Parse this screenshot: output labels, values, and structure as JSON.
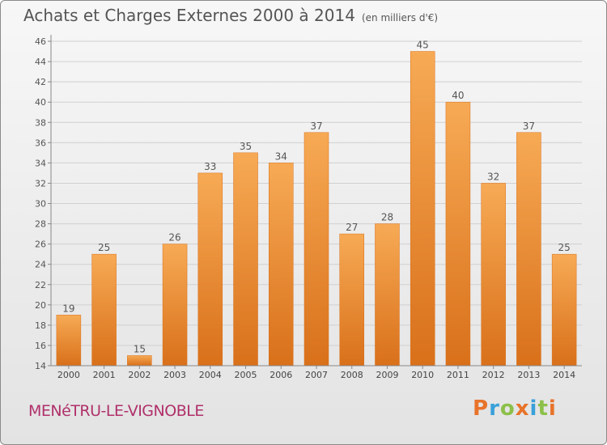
{
  "header": {
    "title": "Achats et Charges Externes 2000 à 2014",
    "unit": "(en milliers d'€)"
  },
  "footer": {
    "commune": "MENéTRU-LE-VIGNOBLE",
    "logo": "Proxiti",
    "logo_colors": [
      "#e8732a",
      "#3aa0d9",
      "#8cc04a",
      "#e8732a",
      "#3aa0d9",
      "#8cc04a",
      "#e8732a"
    ]
  },
  "chart_data": {
    "type": "bar",
    "categories": [
      "2000",
      "2001",
      "2002",
      "2003",
      "2004",
      "2005",
      "2006",
      "2007",
      "2008",
      "2009",
      "2010",
      "2011",
      "2012",
      "2013",
      "2014"
    ],
    "values": [
      19,
      25,
      15,
      26,
      33,
      35,
      34,
      37,
      27,
      28,
      45,
      40,
      32,
      37,
      25
    ],
    "ylim": [
      14,
      46
    ],
    "yticks": [
      14,
      16,
      18,
      20,
      22,
      24,
      26,
      28,
      30,
      32,
      34,
      36,
      38,
      40,
      42,
      44,
      46
    ],
    "grid": true,
    "bar_color": "#f0922e",
    "bar_color_light": "#f7aa55",
    "bar_color_dark": "#d9701a",
    "title": "Achats et Charges Externes 2000 à 2014",
    "xlabel": "",
    "ylabel": ""
  }
}
